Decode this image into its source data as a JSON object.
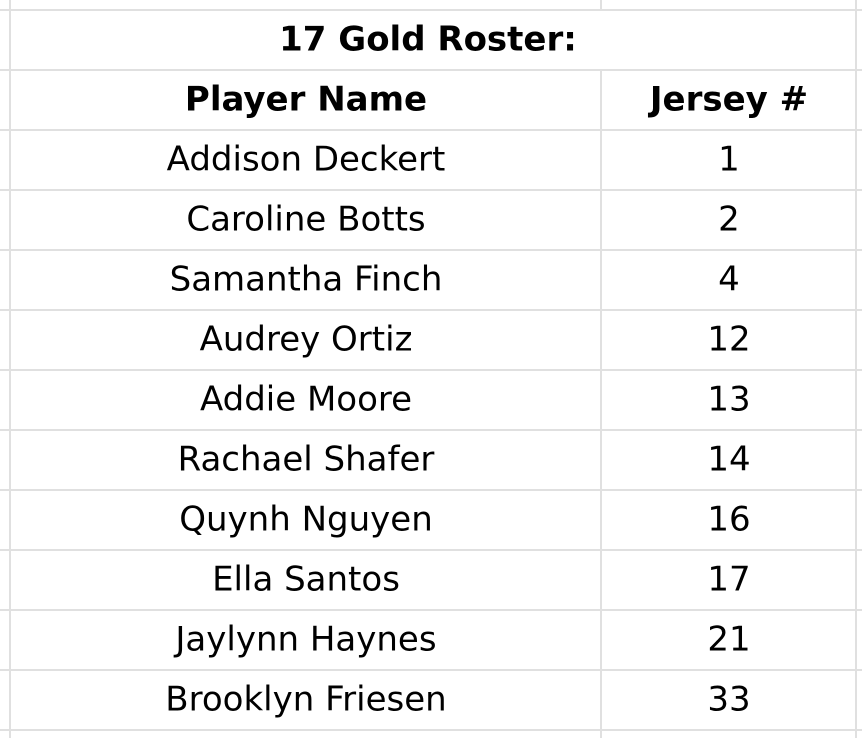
{
  "title": "17 Gold Roster:",
  "table": {
    "header": [
      "Player Name",
      "Jersey #"
    ],
    "rows": [
      [
        "Addison Deckert",
        1
      ],
      [
        "Caroline Botts",
        2
      ],
      [
        "Samantha Finch",
        4
      ],
      [
        "Audrey Ortiz",
        12
      ],
      [
        "Addie Moore",
        13
      ],
      [
        "Rachael Shafer",
        14
      ],
      [
        "Quynh Nguyen",
        16
      ],
      [
        "Ella Santos",
        17
      ],
      [
        "Jaylynn Haynes",
        21
      ],
      [
        "Brooklyn Friesen",
        33
      ]
    ]
  }
}
